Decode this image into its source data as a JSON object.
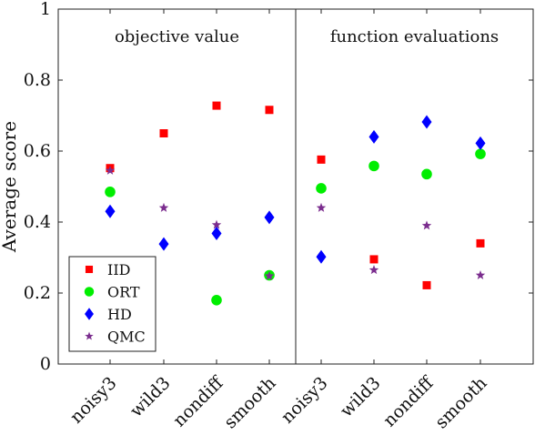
{
  "chart_data": {
    "type": "scatter",
    "ylabel": "Average score",
    "ylim": [
      0,
      1
    ],
    "yticks": [
      "0",
      "0.2",
      "0.4",
      "0.6",
      "0.8",
      "1"
    ],
    "categories": [
      "noisy3",
      "wild3",
      "nondiff",
      "smooth",
      "noisy3",
      "wild3",
      "nondiff",
      "smooth"
    ],
    "panels": [
      {
        "title": "objective value",
        "series": [
          {
            "name": "IID",
            "color": "#ff0000",
            "marker": "square",
            "values": [
              0.552,
              0.65,
              0.728,
              0.716
            ]
          },
          {
            "name": "ORT",
            "color": "#00ee00",
            "marker": "circle",
            "values": [
              0.485,
              null,
              0.18,
              0.25
            ]
          },
          {
            "name": "HD",
            "color": "#0000ff",
            "marker": "diamond",
            "values": [
              0.43,
              0.338,
              0.368,
              0.413
            ]
          },
          {
            "name": "QMC",
            "color": "#7b2d8e",
            "marker": "star",
            "values": [
              0.545,
              0.44,
              0.392,
              0.248
            ]
          }
        ]
      },
      {
        "title": "function evaluations",
        "series": [
          {
            "name": "IID",
            "color": "#ff0000",
            "marker": "square",
            "values": [
              0.576,
              0.295,
              0.222,
              0.34
            ]
          },
          {
            "name": "ORT",
            "color": "#00ee00",
            "marker": "circle",
            "values": [
              0.495,
              0.558,
              0.535,
              0.592
            ]
          },
          {
            "name": "HD",
            "color": "#0000ff",
            "marker": "diamond",
            "values": [
              0.302,
              0.64,
              0.682,
              0.622
            ]
          },
          {
            "name": "QMC",
            "color": "#7b2d8e",
            "marker": "star",
            "values": [
              0.44,
              0.265,
              0.39,
              0.25
            ]
          }
        ]
      }
    ],
    "legend": {
      "placement": "bottom-left",
      "entries": [
        {
          "name": "IID",
          "color": "#ff0000",
          "marker": "square"
        },
        {
          "name": "ORT",
          "color": "#00ee00",
          "marker": "circle"
        },
        {
          "name": "HD",
          "color": "#0000ff",
          "marker": "diamond"
        },
        {
          "name": "QMC",
          "color": "#7b2d8e",
          "marker": "star"
        }
      ]
    },
    "grid": false
  }
}
